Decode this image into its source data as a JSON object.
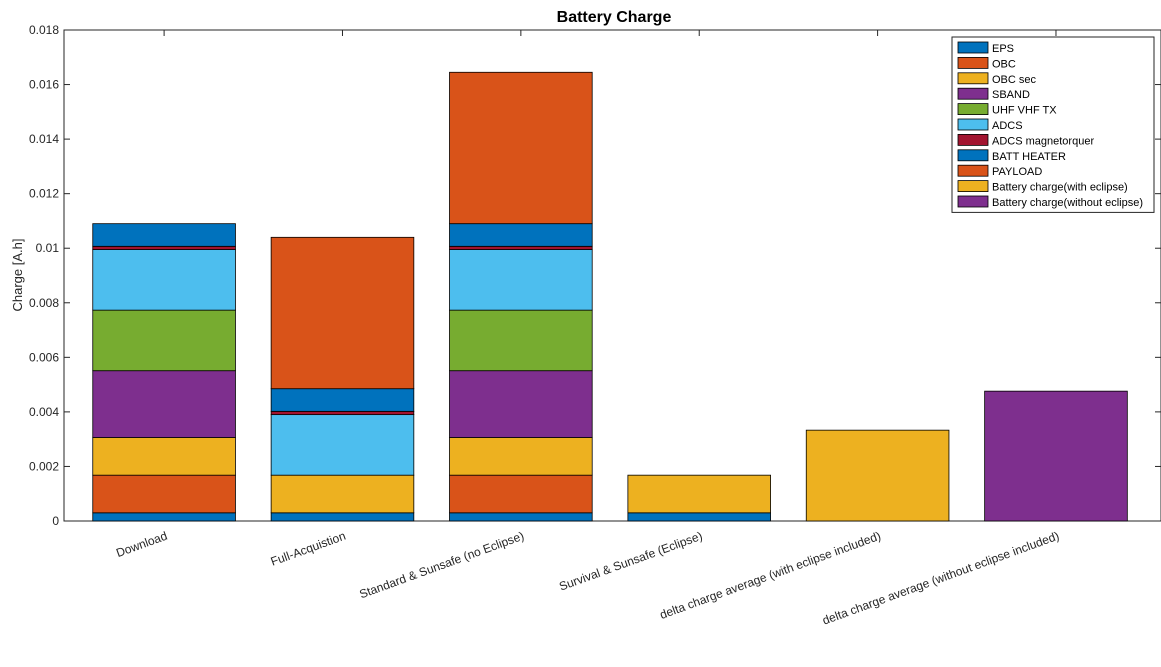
{
  "chart_data": {
    "type": "bar",
    "stacked": true,
    "title": "Battery Charge",
    "xlabel": "",
    "ylabel": "Charge [A.h]",
    "ylim": [
      0,
      0.018
    ],
    "yticks": [
      "0",
      "0.002",
      "0.004",
      "0.006",
      "0.008",
      "0.01",
      "0.012",
      "0.014",
      "0.016",
      "0.018"
    ],
    "grid": false,
    "legend_position": "top-right",
    "categories": [
      "Download",
      "Full-Acquistion",
      "Standard & Sunsafe (no Eclipse)",
      "Survival & Sunsafe (Eclipse)",
      "delta charge average (with eclipse included)",
      "delta charge average (without eclipse included)"
    ],
    "series": [
      {
        "name": "EPS",
        "color": "#0072BD",
        "values": [
          0.0003,
          0.0003,
          0.0003,
          0.0003,
          0,
          0
        ]
      },
      {
        "name": "OBC",
        "color": "#D95319",
        "values": [
          0.00138,
          0,
          0.00138,
          0,
          0,
          0
        ]
      },
      {
        "name": "OBC sec",
        "color": "#EDB120",
        "values": [
          0.00138,
          0.00138,
          0.00138,
          0.00138,
          0,
          0
        ]
      },
      {
        "name": "SBAND",
        "color": "#7E2F8E",
        "values": [
          0.00245,
          0,
          0.00245,
          0,
          0,
          0
        ]
      },
      {
        "name": "UHF VHF TX",
        "color": "#77AC30",
        "values": [
          0.00222,
          0,
          0.00222,
          0,
          0,
          0
        ]
      },
      {
        "name": "ADCS",
        "color": "#4DBEEE",
        "values": [
          0.00222,
          0.00222,
          0.00222,
          0,
          0,
          0
        ]
      },
      {
        "name": "ADCS magnetorquer",
        "color": "#A2142F",
        "values": [
          0.00012,
          0.00012,
          0.00012,
          0,
          0,
          0
        ]
      },
      {
        "name": "BATT HEATER",
        "color": "#0072BD",
        "values": [
          0.00083,
          0.00083,
          0.00083,
          0,
          0,
          0
        ]
      },
      {
        "name": "PAYLOAD",
        "color": "#D95319",
        "values": [
          0,
          0.00555,
          0.00555,
          0,
          0,
          0
        ]
      },
      {
        "name": "Battery charge(with eclipse)",
        "color": "#EDB120",
        "values": [
          0,
          0,
          0,
          0,
          0.00333,
          0
        ]
      },
      {
        "name": "Battery charge(without eclipse)",
        "color": "#7E2F8E",
        "values": [
          0,
          0,
          0,
          0,
          0,
          0.00476
        ]
      }
    ]
  }
}
